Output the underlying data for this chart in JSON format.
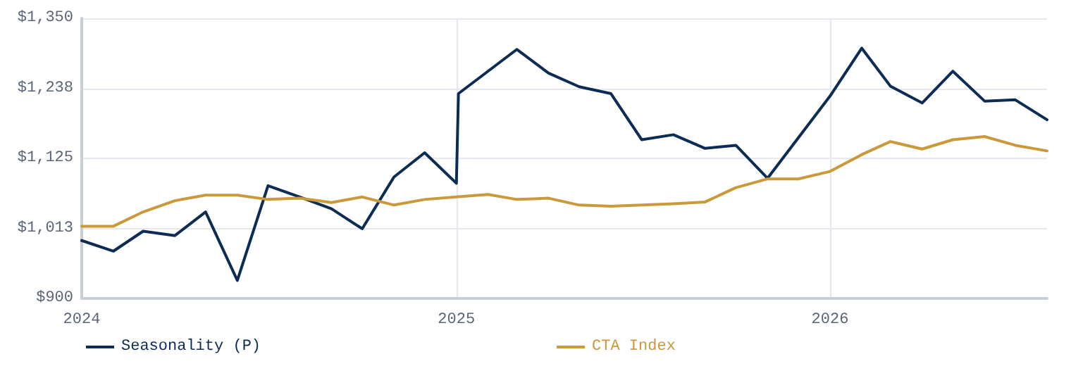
{
  "chart_data": {
    "type": "line",
    "x": [
      "2024-01-01",
      "2024-02-01",
      "2024-03-01",
      "2024-04-01",
      "2024-05-01",
      "2024-06-01",
      "2024-07-01",
      "2024-08-01",
      "2024-09-01",
      "2024-10-01",
      "2024-11-01",
      "2024-12-01",
      "2025-01-01",
      "2025-01-03",
      "2025-03-01",
      "2025-04-01",
      "2025-05-01",
      "2025-06-01",
      "2025-07-01",
      "2025-08-01",
      "2025-09-01",
      "2025-10-01",
      "2025-11-01",
      "2026-01-01",
      "2026-02-01",
      "2026-03-01",
      "2026-04-01",
      "2026-05-01",
      "2026-06-01",
      "2026-07-01",
      "2026-08-01"
    ],
    "series": [
      {
        "name": "Seasonality (P)",
        "color": "#0d2c54",
        "values": [
          993,
          976,
          1008,
          1001,
          1039,
          929,
          1081,
          1063,
          1044,
          1012,
          1095,
          1134,
          1085,
          1229,
          1300,
          1262,
          1240,
          1229,
          1155,
          1163,
          1141,
          1146,
          1093,
          1225,
          1302,
          1241,
          1214,
          1265,
          1217,
          1219,
          1187
        ]
      },
      {
        "name": "CTA Index",
        "color": "#c9993a",
        "x": [
          "2024-01-01",
          "2024-02-01",
          "2024-03-01",
          "2024-04-01",
          "2024-05-01",
          "2024-06-01",
          "2024-07-01",
          "2024-08-01",
          "2024-09-01",
          "2024-10-01",
          "2024-11-01",
          "2024-12-01",
          "2025-01-01",
          "2025-02-01",
          "2025-03-01",
          "2025-04-01",
          "2025-05-01",
          "2025-06-01",
          "2025-07-01",
          "2025-08-01",
          "2025-09-01",
          "2025-10-01",
          "2025-11-01",
          "2025-12-01",
          "2026-01-01",
          "2026-02-01",
          "2026-03-01",
          "2026-04-01",
          "2026-05-01",
          "2026-06-01",
          "2026-07-01",
          "2026-08-01"
        ],
        "values": [
          1016,
          1016,
          1039,
          1057,
          1066,
          1066,
          1059,
          1061,
          1054,
          1063,
          1050,
          1059,
          1063,
          1067,
          1059,
          1061,
          1050,
          1048,
          1050,
          1052,
          1055,
          1078,
          1092,
          1092,
          1104,
          1131,
          1152,
          1140,
          1155,
          1160,
          1146,
          1137
        ]
      }
    ],
    "xlim": [
      "2024-01-01",
      "2026-08-01"
    ],
    "xticks": [
      "2024",
      "2025",
      "2026"
    ],
    "ylim": [
      900,
      1350
    ],
    "yticks": [
      {
        "value": 900,
        "label": "$900"
      },
      {
        "value": 1012.5,
        "label": "$1,013"
      },
      {
        "value": 1125,
        "label": "$1,125"
      },
      {
        "value": 1237.5,
        "label": "$1,238"
      },
      {
        "value": 1350,
        "label": "$1,350"
      }
    ],
    "grid": true,
    "legend": "bottom left",
    "marker": "none",
    "line_style": "solid"
  }
}
